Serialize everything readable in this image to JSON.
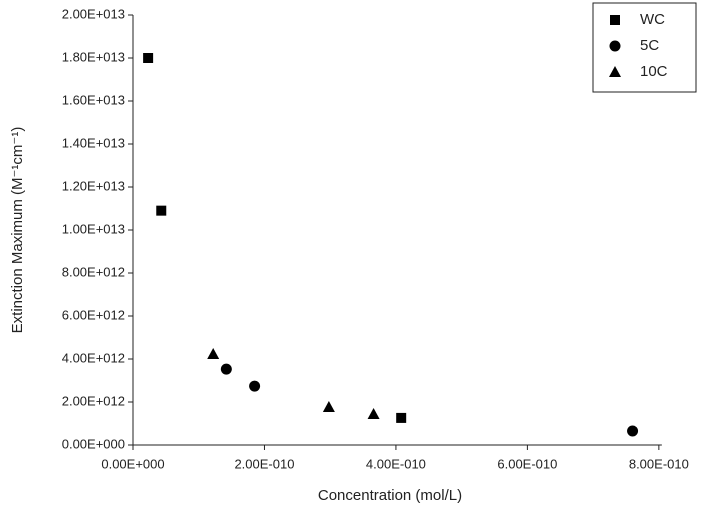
{
  "chart_data": {
    "type": "scatter",
    "x_label": "Concentration (mol/L)",
    "y_label": "Extinction Maximum (M⁻¹cm⁻¹)",
    "xlim": [
      0,
      8.2e-10
    ],
    "ylim": [
      0,
      20000000000000.0
    ],
    "xticks": [
      {
        "value": 0,
        "label": "0.00E+000"
      },
      {
        "value": 2e-10,
        "label": "2.00E-010"
      },
      {
        "value": 4e-10,
        "label": "4.00E-010"
      },
      {
        "value": 6e-10,
        "label": "6.00E-010"
      },
      {
        "value": 8e-10,
        "label": "8.00E-010"
      }
    ],
    "yticks": [
      {
        "value": 0,
        "label": "0.00E+000"
      },
      {
        "value": 2000000000000.0,
        "label": "2.00E+012"
      },
      {
        "value": 4000000000000.0,
        "label": "4.00E+012"
      },
      {
        "value": 6000000000000.0,
        "label": "6.00E+012"
      },
      {
        "value": 8000000000000.0,
        "label": "8.00E+012"
      },
      {
        "value": 10000000000000.0,
        "label": "1.00E+013"
      },
      {
        "value": 12000000000000.0,
        "label": "1.20E+013"
      },
      {
        "value": 14000000000000.0,
        "label": "1.40E+013"
      },
      {
        "value": 16000000000000.0,
        "label": "1.60E+013"
      },
      {
        "value": 18000000000000.0,
        "label": "1.80E+013"
      },
      {
        "value": 20000000000000.0,
        "label": "2.00E+013"
      }
    ],
    "legend": "top-right",
    "series": [
      {
        "name": "WC",
        "color": "#000000",
        "marker": "square",
        "x": [
          2.3e-11,
          4.3e-11,
          4.08e-10
        ],
        "values": [
          18000000000000.0,
          10900000000000.0,
          1260000000000.0
        ]
      },
      {
        "name": "5C",
        "color": "#000000",
        "marker": "circle",
        "x": [
          1.42e-10,
          1.85e-10,
          7.6e-10
        ],
        "values": [
          3530000000000.0,
          2740000000000.0,
          650000000000.0
        ]
      },
      {
        "name": "10C",
        "color": "#000000",
        "marker": "triangle",
        "x": [
          1.22e-10,
          2.98e-10,
          3.66e-10
        ],
        "values": [
          4230000000000.0,
          1770000000000.0,
          1440000000000.0
        ]
      }
    ]
  }
}
